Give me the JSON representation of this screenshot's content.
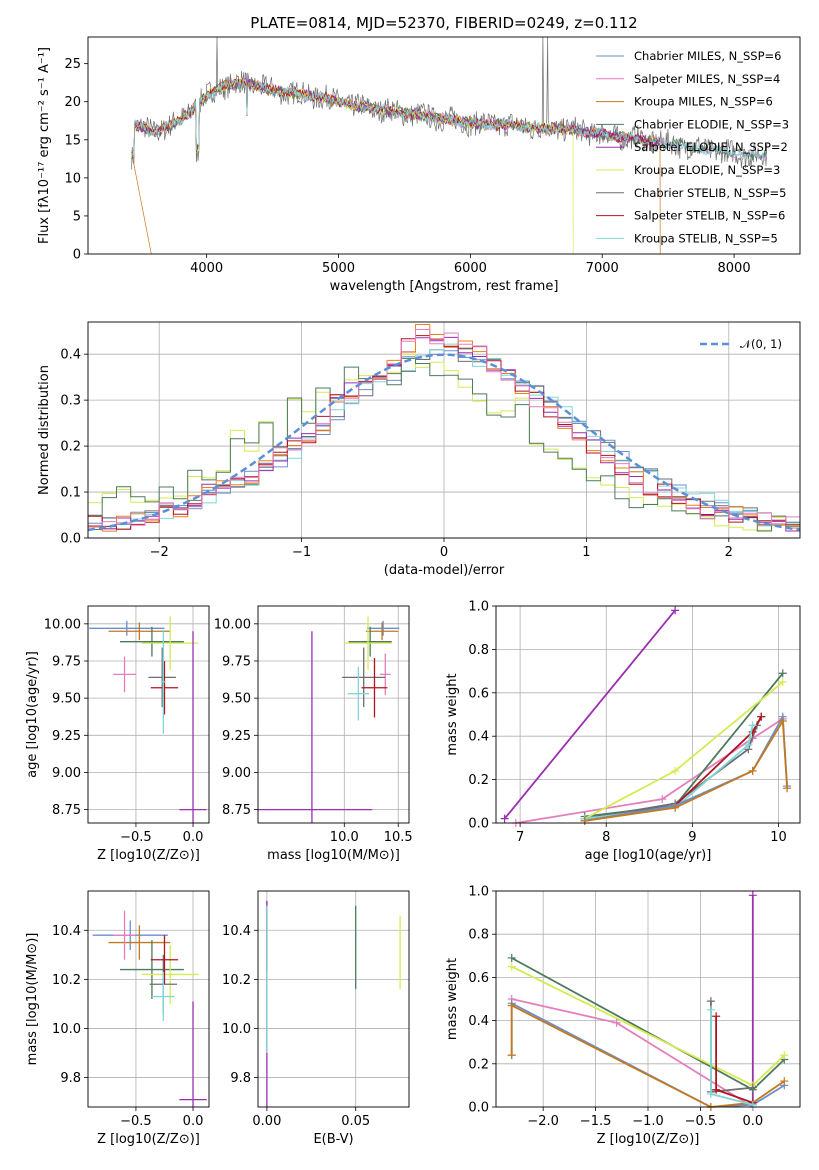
{
  "figure": {
    "title": "PLATE=0814, MJD=52370, FIBERID=0249, z=0.112"
  },
  "colors": {
    "chabrier_miles": "#6a8fd0",
    "salpeter_miles": "#e47fbd",
    "kroupa_miles": "#c27a1f",
    "chabrier_elodie": "#4c7a5c",
    "salpeter_elodie": "#9b2fb0",
    "kroupa_elodie": "#d6ea52",
    "chabrier_stelib": "#6e6e6e",
    "salpeter_stelib": "#b0151f",
    "kroupa_stelib": "#7fd7d8",
    "normal": "#5b8fd6",
    "grid": "#b0b0b0",
    "orange": "#ee7f1a"
  },
  "chart_data": [
    {
      "id": "spectrum",
      "type": "line",
      "title": "PLATE=0814, MJD=52370, FIBERID=0249, z=0.112",
      "xlabel": "wavelength [Angstrom, rest frame]",
      "ylabel": "Flux [fλ10⁻¹⁷ erg cm⁻² s⁻¹ A⁻¹]",
      "xlim": [
        3100,
        8500
      ],
      "ylim": [
        0,
        28.5
      ],
      "xticks": [
        4000,
        5000,
        6000,
        7000,
        8000
      ],
      "yticks": [
        0,
        5,
        10,
        15,
        20,
        25
      ],
      "grid": false,
      "legend": "top-right",
      "legend_entries": [
        "Chabrier MILES, N_SSP=6",
        "Salpeter MILES, N_SSP=4",
        "Kroupa MILES, N_SSP=6",
        "Chabrier ELODIE, N_SSP=3",
        "Salpeter ELODIE, N_SSP=2",
        "Kroupa ELODIE, N_SSP=3",
        "Chabrier STELIB, N_SSP=5",
        "Salpeter STELIB, N_SSP=6",
        "Kroupa STELIB, N_SSP=5"
      ],
      "shape": [
        [
          3450,
          17
        ],
        [
          3600,
          16
        ],
        [
          3800,
          17.5
        ],
        [
          3950,
          20
        ],
        [
          4100,
          22
        ],
        [
          4300,
          22.5
        ],
        [
          4500,
          21.5
        ],
        [
          4700,
          21
        ],
        [
          4900,
          20.5
        ],
        [
          5100,
          19.5
        ],
        [
          5300,
          19
        ],
        [
          5500,
          18.5
        ],
        [
          5700,
          18
        ],
        [
          5900,
          17.5
        ],
        [
          6100,
          17
        ],
        [
          6300,
          17
        ],
        [
          6500,
          16.5
        ],
        [
          6700,
          16.5
        ],
        [
          6900,
          16
        ],
        [
          7100,
          15.5
        ],
        [
          7300,
          15
        ],
        [
          7500,
          14.5
        ],
        [
          7700,
          14
        ],
        [
          7900,
          13.5
        ],
        [
          8100,
          13
        ],
        [
          8250,
          13
        ]
      ]
    },
    {
      "id": "residuals",
      "type": "line",
      "xlabel": "(data-model)/error",
      "ylabel": "Normed distribution",
      "xlim": [
        -2.5,
        2.5
      ],
      "ylim": [
        0,
        0.47
      ],
      "xticks": [
        -2,
        -1,
        0,
        1,
        2
      ],
      "yticks": [
        0.0,
        0.1,
        0.2,
        0.3,
        0.4
      ],
      "grid": true,
      "legend": "top-right",
      "legend_entries": [
        "𝒩(0, 1)"
      ],
      "hist_a": [
        0.02,
        0.03,
        0.03,
        0.04,
        0.05,
        0.06,
        0.07,
        0.08,
        0.09,
        0.1,
        0.11,
        0.13,
        0.15,
        0.17,
        0.19,
        0.22,
        0.24,
        0.27,
        0.3,
        0.32,
        0.34,
        0.36,
        0.38,
        0.39,
        0.4,
        0.41,
        0.4,
        0.39,
        0.38,
        0.36,
        0.34,
        0.32,
        0.29,
        0.27,
        0.24,
        0.22,
        0.2,
        0.18,
        0.16,
        0.14,
        0.12,
        0.1,
        0.09,
        0.08,
        0.07,
        0.06,
        0.05,
        0.04,
        0.04,
        0.03
      ],
      "hist_b": [
        0.06,
        0.1,
        0.11,
        0.09,
        0.08,
        0.1,
        0.1,
        0.13,
        0.14,
        0.15,
        0.22,
        0.2,
        0.26,
        0.21,
        0.31,
        0.26,
        0.32,
        0.31,
        0.36,
        0.36,
        0.34,
        0.35,
        0.39,
        0.37,
        0.37,
        0.35,
        0.33,
        0.3,
        0.28,
        0.26,
        0.3,
        0.22,
        0.2,
        0.17,
        0.15,
        0.13,
        0.12,
        0.1,
        0.08,
        0.08,
        0.07,
        0.06,
        0.05,
        0.05,
        0.04,
        0.04,
        0.03,
        0.03,
        0.03,
        0.02
      ],
      "hist_c": [
        0.03,
        0.03,
        0.03,
        0.04,
        0.05,
        0.07,
        0.06,
        0.08,
        0.1,
        0.12,
        0.13,
        0.12,
        0.16,
        0.18,
        0.2,
        0.22,
        0.25,
        0.3,
        0.32,
        0.35,
        0.34,
        0.38,
        0.42,
        0.45,
        0.44,
        0.43,
        0.42,
        0.4,
        0.37,
        0.36,
        0.33,
        0.3,
        0.27,
        0.25,
        0.22,
        0.2,
        0.17,
        0.15,
        0.13,
        0.11,
        0.1,
        0.08,
        0.07,
        0.06,
        0.05,
        0.05,
        0.04,
        0.04,
        0.03,
        0.03
      ],
      "normal_mu": 0,
      "normal_sigma": 1
    },
    {
      "id": "age-vs-Z",
      "type": "scatter",
      "xlabel": "Z [log10(Z/Z⊙)]",
      "ylabel": "age  [log10(age/yr)]",
      "xlim": [
        -0.92,
        0.14
      ],
      "ylim": [
        8.66,
        10.12
      ],
      "xticks": [
        -0.5,
        0.0
      ],
      "yticks": [
        8.75,
        9.0,
        9.25,
        9.5,
        9.75,
        10.0
      ],
      "grid": true,
      "points": [
        {
          "x": -0.58,
          "y": 9.97,
          "xerr": 0.33,
          "yerr": 0.05,
          "color": "chabrier_miles"
        },
        {
          "x": -0.47,
          "y": 9.95,
          "xerr": 0.27,
          "yerr": 0.06,
          "color": "kroupa_miles"
        },
        {
          "x": -0.6,
          "y": 9.66,
          "xerr": 0.1,
          "yerr": 0.12,
          "color": "salpeter_miles"
        },
        {
          "x": -0.36,
          "y": 9.88,
          "xerr": 0.28,
          "yerr": 0.1,
          "color": "chabrier_elodie"
        },
        {
          "x": -0.2,
          "y": 9.87,
          "xerr": 0.25,
          "yerr": 0.18,
          "color": "kroupa_elodie"
        },
        {
          "x": -0.27,
          "y": 9.64,
          "xerr": 0.12,
          "yerr": 0.2,
          "color": "chabrier_stelib"
        },
        {
          "x": -0.25,
          "y": 9.57,
          "xerr": 0.12,
          "yerr": 0.18,
          "color": "salpeter_stelib"
        },
        {
          "x": -0.26,
          "y": 9.61,
          "xerr": 0.02,
          "yerr": 0.35,
          "color": "kroupa_stelib"
        },
        {
          "x": 0.0,
          "y": 8.75,
          "xerr": 0.12,
          "yerr": 1.2,
          "color": "salpeter_elodie"
        }
      ]
    },
    {
      "id": "age-vs-mass",
      "type": "scatter",
      "xlabel": "mass [log10(M/M⊙)]",
      "ylabel": "",
      "xlim": [
        9.2,
        10.6
      ],
      "ylim": [
        8.66,
        10.12
      ],
      "xticks": [
        10.0,
        10.5
      ],
      "yticks": [
        8.75,
        9.0,
        9.25,
        9.5,
        9.75,
        10.0
      ],
      "grid": true,
      "points": [
        {
          "x": 10.36,
          "y": 9.97,
          "xerr": 0.15,
          "yerr": 0.05,
          "color": "chabrier_miles"
        },
        {
          "x": 10.35,
          "y": 9.95,
          "xerr": 0.15,
          "yerr": 0.06,
          "color": "kroupa_miles"
        },
        {
          "x": 10.38,
          "y": 9.66,
          "xerr": 0.05,
          "yerr": 0.14,
          "color": "salpeter_miles"
        },
        {
          "x": 10.24,
          "y": 9.88,
          "xerr": 0.2,
          "yerr": 0.1,
          "color": "chabrier_elodie"
        },
        {
          "x": 10.22,
          "y": 9.87,
          "xerr": 0.22,
          "yerr": 0.18,
          "color": "kroupa_elodie"
        },
        {
          "x": 10.18,
          "y": 9.64,
          "xerr": 0.2,
          "yerr": 0.2,
          "color": "chabrier_stelib"
        },
        {
          "x": 10.28,
          "y": 9.57,
          "xerr": 0.12,
          "yerr": 0.2,
          "color": "salpeter_stelib"
        },
        {
          "x": 10.13,
          "y": 9.53,
          "xerr": 0.1,
          "yerr": 0.18,
          "color": "kroupa_stelib"
        },
        {
          "x": 9.7,
          "y": 8.75,
          "xerr": 0.56,
          "yerr": 1.2,
          "color": "salpeter_elodie"
        }
      ]
    },
    {
      "id": "weight-vs-age",
      "type": "line",
      "xlabel": "age  [log10(age/yr)]",
      "ylabel": "mass weight",
      "xlim": [
        6.72,
        10.25
      ],
      "ylim": [
        0.0,
        1.0
      ],
      "xticks": [
        7,
        8,
        9,
        10
      ],
      "yticks": [
        0.0,
        0.2,
        0.4,
        0.6,
        0.8,
        1.0
      ],
      "grid": true,
      "series": [
        {
          "color": "salpeter_elodie",
          "points": [
            [
              6.82,
              0.02
            ],
            [
              8.8,
              0.98
            ]
          ]
        },
        {
          "color": "salpeter_miles",
          "points": [
            [
              6.95,
              0.0
            ],
            [
              8.65,
              0.11
            ],
            [
              9.7,
              0.39
            ],
            [
              10.05,
              0.48
            ]
          ]
        },
        {
          "color": "chabrier_elodie",
          "points": [
            [
              7.75,
              0.03
            ],
            [
              8.8,
              0.08
            ],
            [
              10.05,
              0.69
            ]
          ]
        },
        {
          "color": "kroupa_elodie",
          "points": [
            [
              7.75,
              0.02
            ],
            [
              8.8,
              0.24
            ],
            [
              10.05,
              0.65
            ]
          ]
        },
        {
          "color": "chabrier_stelib",
          "points": [
            [
              7.75,
              0.02
            ],
            [
              8.8,
              0.09
            ],
            [
              9.65,
              0.34
            ],
            [
              9.75,
              0.45
            ],
            [
              9.8,
              0.49
            ]
          ]
        },
        {
          "color": "salpeter_stelib",
          "points": [
            [
              7.75,
              0.01
            ],
            [
              8.8,
              0.08
            ],
            [
              9.7,
              0.42
            ],
            [
              9.8,
              0.49
            ]
          ]
        },
        {
          "color": "kroupa_stelib",
          "points": [
            [
              7.75,
              0.02
            ],
            [
              8.8,
              0.07
            ],
            [
              9.65,
              0.36
            ],
            [
              9.7,
              0.45
            ]
          ]
        },
        {
          "color": "chabrier_miles",
          "points": [
            [
              7.75,
              0.01
            ],
            [
              8.8,
              0.08
            ],
            [
              9.7,
              0.24
            ],
            [
              10.05,
              0.49
            ],
            [
              10.1,
              0.17
            ]
          ]
        },
        {
          "color": "kroupa_miles",
          "points": [
            [
              7.75,
              0.01
            ],
            [
              8.8,
              0.07
            ],
            [
              9.7,
              0.24
            ],
            [
              10.05,
              0.47
            ],
            [
              10.1,
              0.16
            ]
          ]
        }
      ]
    },
    {
      "id": "mass-vs-Z",
      "type": "scatter",
      "xlabel": "Z [log10(Z/Z⊙)]",
      "ylabel": "mass [log10(M/M⊙)]",
      "xlim": [
        -0.92,
        0.14
      ],
      "ylim": [
        9.68,
        10.56
      ],
      "xticks": [
        -0.5,
        0.0
      ],
      "yticks": [
        9.8,
        10.0,
        10.2,
        10.4
      ],
      "grid": true,
      "points": [
        {
          "x": -0.55,
          "y": 10.38,
          "xerr": 0.33,
          "yerr": 0.06,
          "color": "chabrier_miles"
        },
        {
          "x": -0.47,
          "y": 10.35,
          "xerr": 0.27,
          "yerr": 0.07,
          "color": "kroupa_miles"
        },
        {
          "x": -0.6,
          "y": 10.38,
          "xerr": 0.1,
          "yerr": 0.1,
          "color": "salpeter_miles"
        },
        {
          "x": -0.36,
          "y": 10.24,
          "xerr": 0.28,
          "yerr": 0.12,
          "color": "chabrier_elodie"
        },
        {
          "x": -0.2,
          "y": 10.22,
          "xerr": 0.25,
          "yerr": 0.12,
          "color": "kroupa_elodie"
        },
        {
          "x": -0.26,
          "y": 10.18,
          "xerr": 0.12,
          "yerr": 0.12,
          "color": "chabrier_stelib"
        },
        {
          "x": -0.25,
          "y": 10.28,
          "xerr": 0.12,
          "yerr": 0.1,
          "color": "salpeter_stelib"
        },
        {
          "x": -0.26,
          "y": 10.13,
          "xerr": 0.1,
          "yerr": 0.1,
          "color": "kroupa_stelib"
        },
        {
          "x": 0.0,
          "y": 9.71,
          "xerr": 0.12,
          "yerr": 0.4,
          "color": "salpeter_elodie"
        }
      ]
    },
    {
      "id": "mass-vs-ebv",
      "type": "scatter",
      "xlabel": "E(B-V)",
      "ylabel": "",
      "xlim": [
        -0.005,
        0.08
      ],
      "ylim": [
        9.68,
        10.56
      ],
      "xticks": [
        0.0,
        0.05
      ],
      "yticks": [
        9.8,
        10.0,
        10.2,
        10.4
      ],
      "grid": true,
      "points": [
        {
          "x": 0.0,
          "y": 10.38,
          "xerr": 0.0,
          "yerr": 0.14,
          "color": "chabrier_miles"
        },
        {
          "x": 0.0,
          "y": 10.35,
          "xerr": 0.0,
          "yerr": 0.12,
          "color": "kroupa_miles"
        },
        {
          "x": 0.0,
          "y": 10.38,
          "xerr": 0.0,
          "yerr": 0.12,
          "color": "salpeter_miles"
        },
        {
          "x": 0.05,
          "y": 10.33,
          "xerr": 0.0,
          "yerr": 0.17,
          "color": "chabrier_elodie"
        },
        {
          "x": 0.075,
          "y": 10.31,
          "xerr": 0.0,
          "yerr": 0.15,
          "color": "kroupa_elodie"
        },
        {
          "x": 0.0,
          "y": 10.1,
          "xerr": 0.0,
          "yerr": 0.42,
          "color": "salpeter_elodie"
        },
        {
          "x": 0.0,
          "y": 10.2,
          "xerr": 0.0,
          "yerr": 0.3,
          "color": "kroupa_stelib"
        }
      ]
    },
    {
      "id": "weight-vs-Z",
      "type": "line",
      "xlabel": "Z [log10(Z/Z⊙)]",
      "ylabel": "mass weight",
      "xlim": [
        -2.45,
        0.45
      ],
      "ylim": [
        0.0,
        1.0
      ],
      "xticks": [
        -2.0,
        -1.5,
        -1.0,
        -0.5,
        0.0
      ],
      "yticks": [
        0.0,
        0.2,
        0.4,
        0.6,
        0.8,
        1.0
      ],
      "grid": true,
      "series": [
        {
          "color": "salpeter_elodie",
          "points": [
            [
              0.0,
              0.98
            ],
            [
              0.0,
              0.02
            ]
          ]
        },
        {
          "color": "chabrier_elodie",
          "points": [
            [
              -2.3,
              0.69
            ],
            [
              0.0,
              0.08
            ],
            [
              0.3,
              0.22
            ]
          ]
        },
        {
          "color": "kroupa_elodie",
          "points": [
            [
              -2.3,
              0.65
            ],
            [
              0.0,
              0.1
            ],
            [
              0.3,
              0.24
            ]
          ]
        },
        {
          "color": "salpeter_miles",
          "points": [
            [
              -2.3,
              0.5
            ],
            [
              -1.3,
              0.39
            ],
            [
              0.0,
              0.0
            ]
          ]
        },
        {
          "color": "chabrier_miles",
          "points": [
            [
              -2.3,
              0.24
            ],
            [
              -2.3,
              0.48
            ],
            [
              -0.4,
              0.0
            ],
            [
              0.0,
              0.01
            ],
            [
              0.3,
              0.1
            ]
          ]
        },
        {
          "color": "kroupa_miles",
          "points": [
            [
              -2.3,
              0.24
            ],
            [
              -2.3,
              0.47
            ],
            [
              -0.4,
              0.0
            ],
            [
              0.0,
              0.02
            ],
            [
              0.3,
              0.12
            ]
          ]
        },
        {
          "color": "chabrier_stelib",
          "points": [
            [
              -0.4,
              0.49
            ],
            [
              -0.4,
              0.07
            ],
            [
              0.0,
              0.09
            ]
          ]
        },
        {
          "color": "salpeter_stelib",
          "points": [
            [
              -0.35,
              0.42
            ],
            [
              -0.35,
              0.08
            ],
            [
              0.0,
              0.02
            ]
          ]
        },
        {
          "color": "kroupa_stelib",
          "points": [
            [
              -0.4,
              0.45
            ],
            [
              -0.4,
              0.06
            ],
            [
              0.0,
              0.01
            ]
          ]
        }
      ]
    }
  ]
}
